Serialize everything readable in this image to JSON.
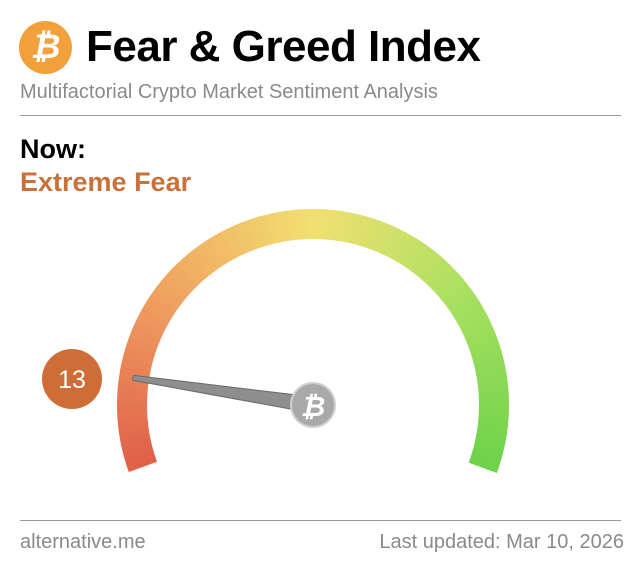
{
  "header": {
    "logo_icon": "bitcoin-icon",
    "title": "Fear & Greed Index",
    "subtitle": "Multifactorial Crypto Market Sentiment Analysis"
  },
  "status": {
    "label": "Now:",
    "classification": "Extreme Fear",
    "classification_color": "#c8713a"
  },
  "chart_data": {
    "type": "gauge",
    "value": 13,
    "value_label": "13",
    "range": [
      0,
      100
    ],
    "colors": [
      "#e0604a",
      "#f0a060",
      "#f2e070",
      "#a8e060",
      "#6ed24a"
    ],
    "badge_color": "#cf6d36",
    "needle_hub_icon": "bitcoin-icon"
  },
  "footer": {
    "source": "alternative.me",
    "updated": "Last updated: Mar 10, 2026"
  }
}
